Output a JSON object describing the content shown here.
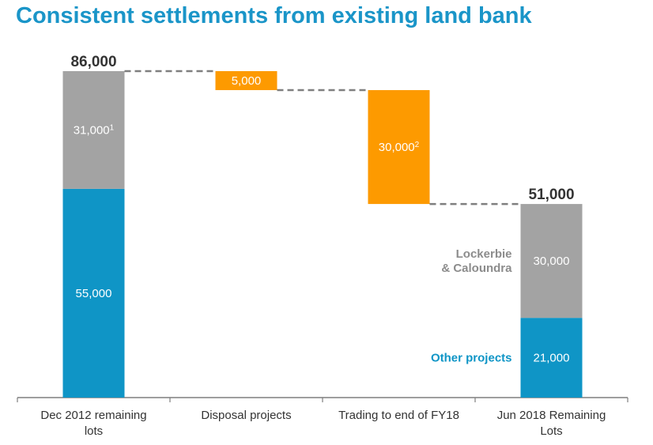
{
  "title": "Consistent settlements from existing land bank",
  "colors": {
    "title": "#1a95c8",
    "blue": "#0f95c6",
    "grey": "#a3a3a3",
    "orange": "#fd9a00",
    "connector": "#7f7f7f",
    "axis": "#7f7f7f",
    "text": "#333333",
    "annot_grey": "#8c8c8c"
  },
  "chart_data": {
    "type": "waterfall",
    "title": "Consistent settlements from existing land bank",
    "categories": [
      "Dec 2012 remaining  lots",
      "Disposal projects",
      "Trading to end of FY18",
      "Jun 2018 Remaining Lots"
    ],
    "ylim": [
      0,
      86000
    ],
    "grid": false,
    "bars": [
      {
        "category": "Dec 2012 remaining  lots",
        "kind": "stacked",
        "total_label": "86,000",
        "segments": [
          {
            "value": 55000,
            "label": "55,000",
            "color": "blue"
          },
          {
            "value": 31000,
            "label": "31,000",
            "footnote": "1",
            "color": "grey"
          }
        ]
      },
      {
        "category": "Disposal projects",
        "kind": "decrease",
        "from": 86000,
        "to": 81000,
        "value": 5000,
        "label": "5,000",
        "color": "orange"
      },
      {
        "category": "Trading to end of FY18",
        "kind": "decrease",
        "from": 81000,
        "to": 51000,
        "value": 30000,
        "label": "30,000",
        "footnote": "2",
        "color": "orange"
      },
      {
        "category": "Jun 2018 Remaining Lots",
        "kind": "stacked",
        "total_label": "51,000",
        "segments": [
          {
            "value": 21000,
            "label": "21,000",
            "color": "blue",
            "annotation": "Other projects"
          },
          {
            "value": 30000,
            "label": "30,000",
            "color": "grey",
            "annotation": [
              "Lockerbie",
              "& Caloundra"
            ]
          }
        ]
      }
    ]
  }
}
